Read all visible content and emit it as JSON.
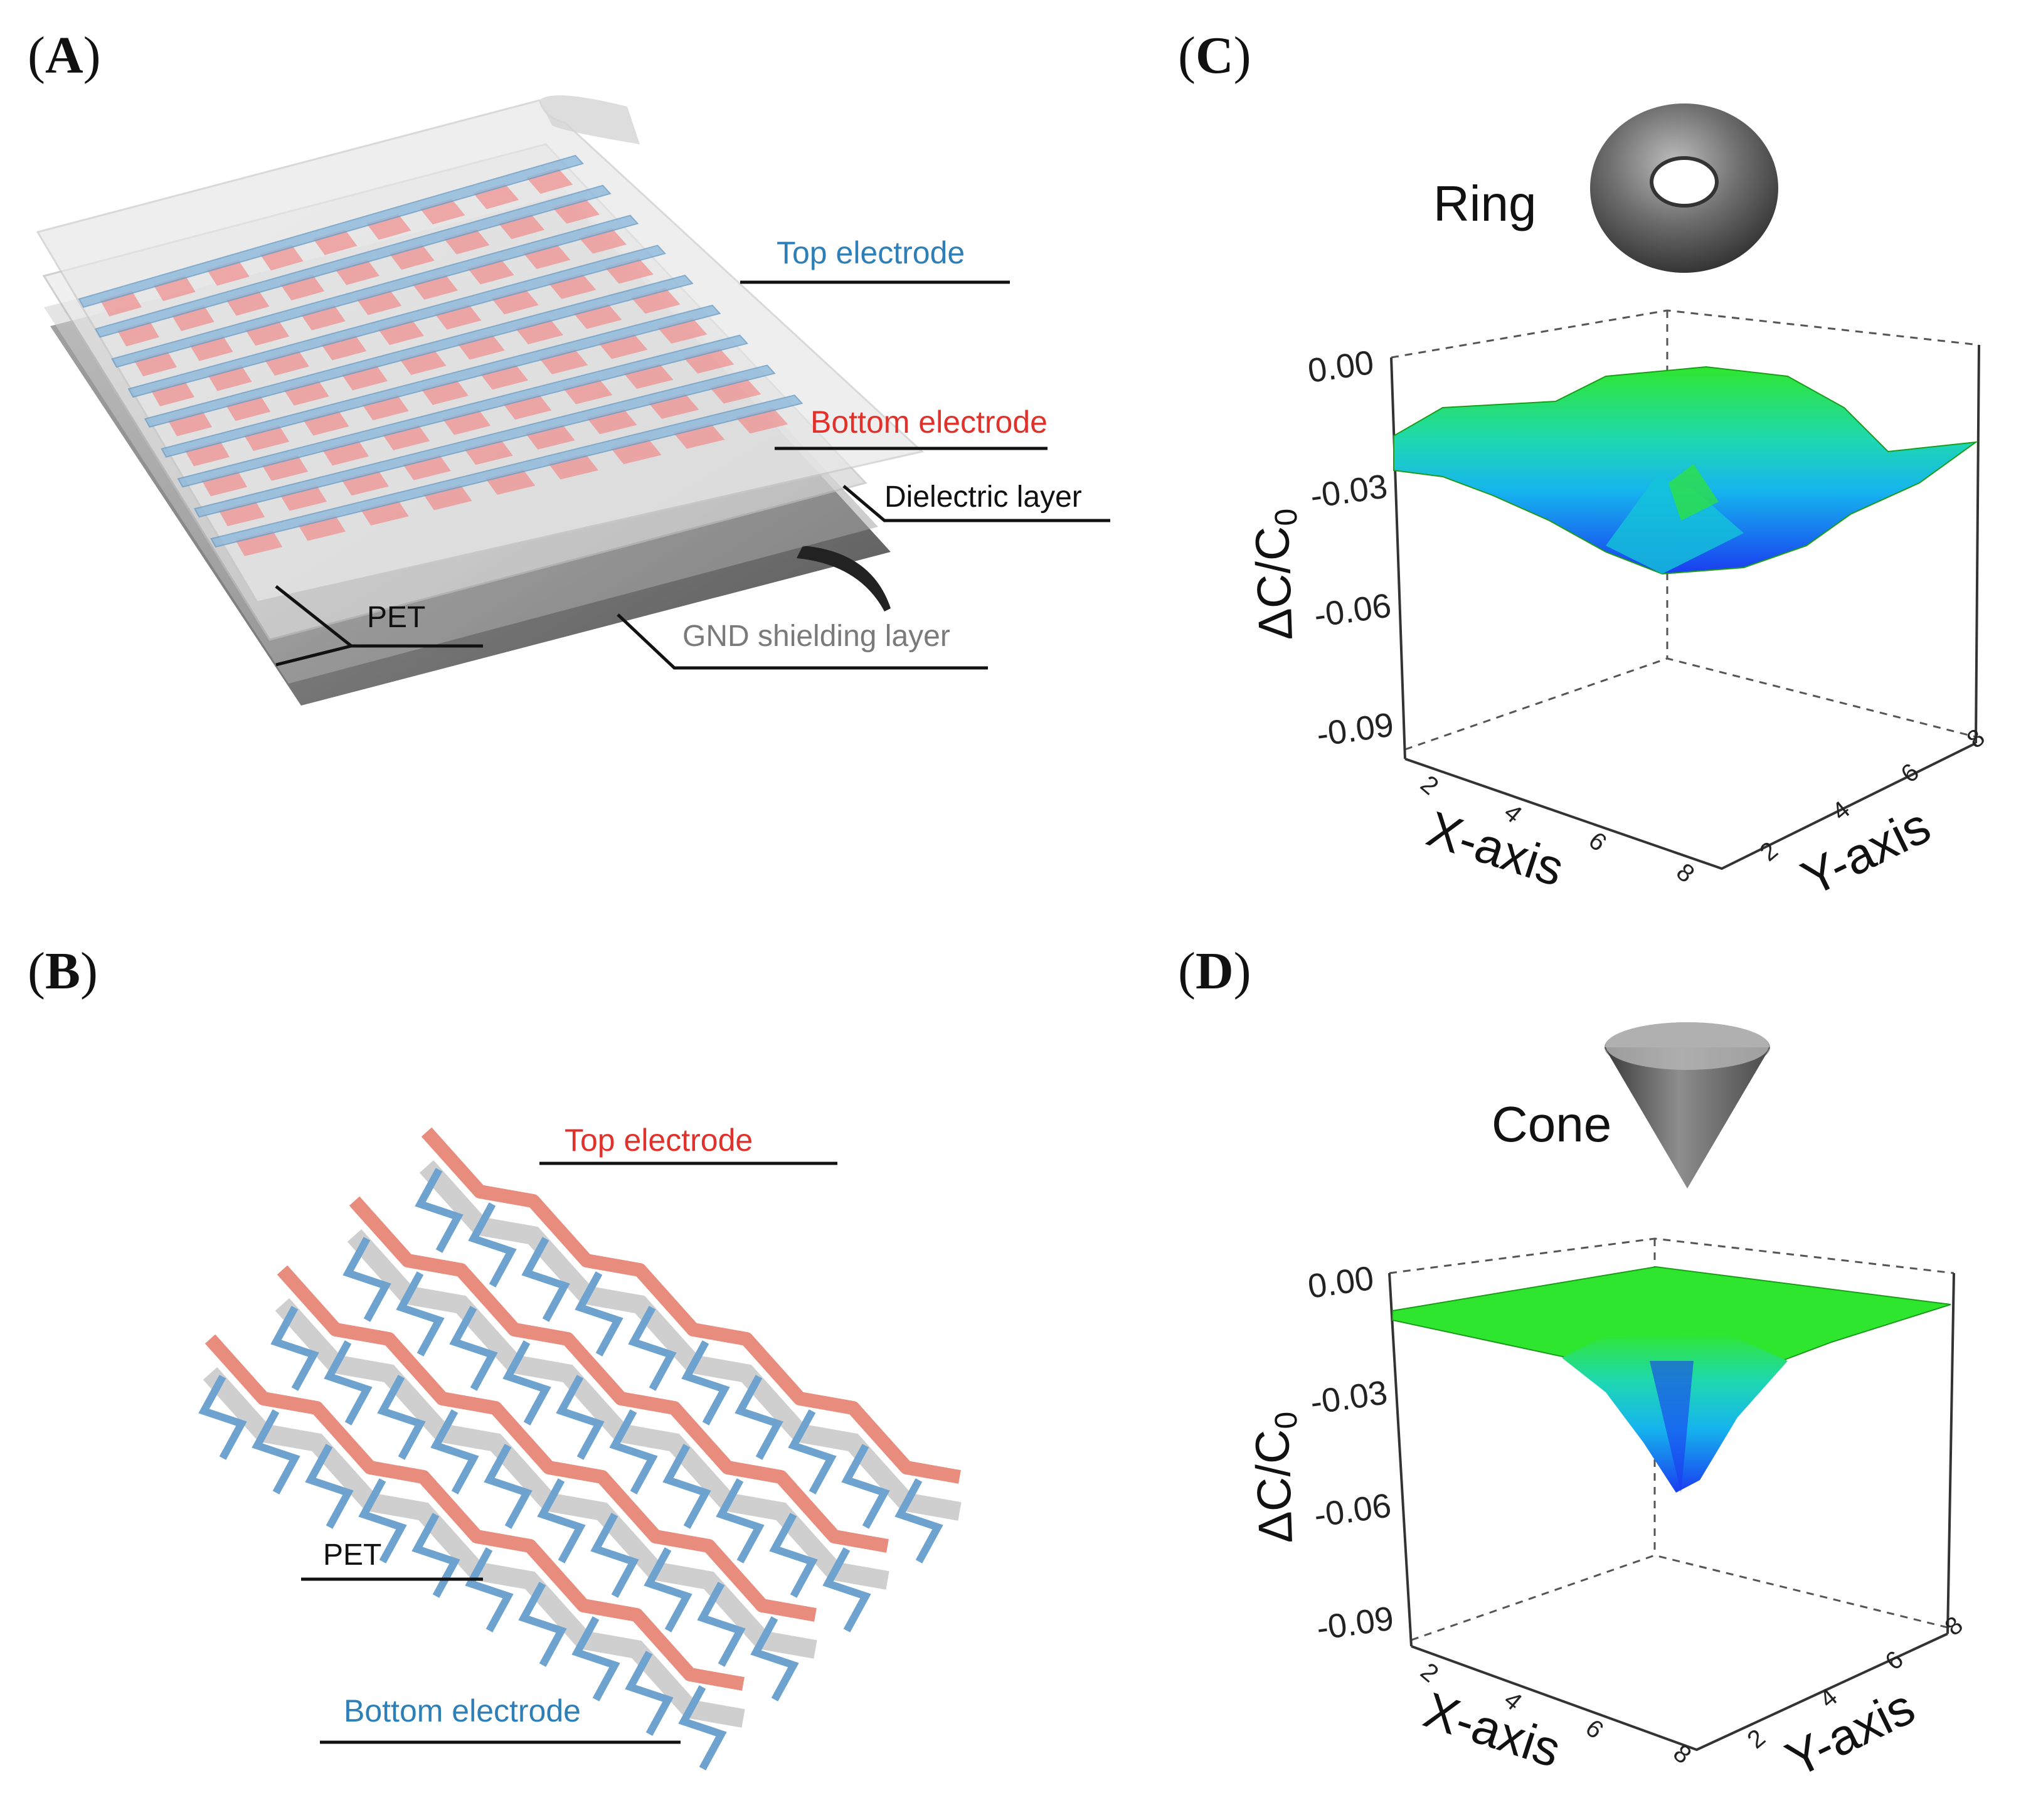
{
  "panels": {
    "a": {
      "label": "A",
      "labels": {
        "top": "Top electrode",
        "bottom": "Bottom electrode",
        "dielectric": "Dielectric layer",
        "pet": "PET",
        "gnd": "GND shielding layer"
      },
      "colors": {
        "top": "#2e7fb8",
        "bottom": "#e0312b",
        "dark": "#111111",
        "gnd": "#7a7a7a"
      }
    },
    "b": {
      "label": "B",
      "labels": {
        "top": "Top electrode",
        "pet": "PET",
        "bottom": "Bottom electrode"
      },
      "colors": {
        "top": "#e0312b",
        "bottom": "#2e7fb8"
      }
    },
    "c": {
      "label": "C",
      "object_label": "Ring",
      "zlabel": "ΔC/C",
      "zlabel_sub": "0",
      "zticks": [
        "0.00",
        "-0.03",
        "-0.06",
        "-0.09"
      ],
      "xlabel": "X-axis",
      "ylabel": "Y-axis",
      "xticks": [
        "2",
        "4",
        "6",
        "8"
      ],
      "yticks": [
        "2",
        "4",
        "6",
        "8"
      ]
    },
    "d": {
      "label": "D",
      "object_label": "Cone",
      "zlabel": "ΔC/C",
      "zlabel_sub": "0",
      "zticks": [
        "0.00",
        "-0.03",
        "-0.06",
        "-0.09"
      ],
      "xlabel": "X-axis",
      "ylabel": "Y-axis",
      "xticks": [
        "2",
        "4",
        "6",
        "8"
      ],
      "yticks": [
        "2",
        "4",
        "6",
        "8"
      ]
    }
  }
}
